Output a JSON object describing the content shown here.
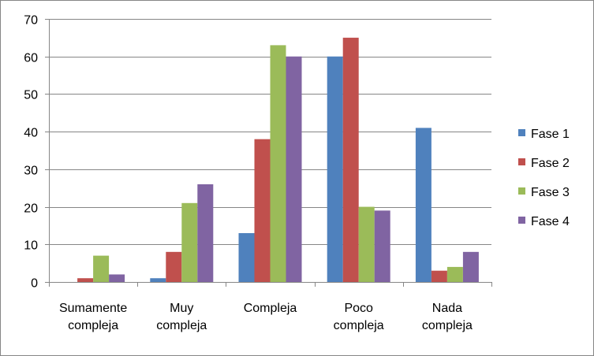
{
  "chart_data": {
    "type": "bar",
    "title": "",
    "xlabel": "",
    "ylabel": "",
    "ylim": [
      0,
      70
    ],
    "yticks": [
      0,
      10,
      20,
      30,
      40,
      50,
      60,
      70
    ],
    "grid": true,
    "legend_position": "right",
    "categories": [
      [
        "Sumamente",
        "compleja"
      ],
      [
        "Muy",
        "compleja"
      ],
      [
        "Compleja"
      ],
      [
        "Poco",
        "compleja"
      ],
      [
        "Nada",
        "compleja"
      ]
    ],
    "series": [
      {
        "name": "Fase 1",
        "color": "#4F81BD",
        "values": [
          0,
          1,
          13,
          60,
          41
        ]
      },
      {
        "name": "Fase 2",
        "color": "#C0504D",
        "values": [
          1,
          8,
          38,
          65,
          3
        ]
      },
      {
        "name": "Fase 3",
        "color": "#9BBB59",
        "values": [
          7,
          21,
          63,
          20,
          4
        ]
      },
      {
        "name": "Fase 4",
        "color": "#8064A2",
        "values": [
          2,
          26,
          60,
          19,
          8
        ]
      }
    ]
  }
}
